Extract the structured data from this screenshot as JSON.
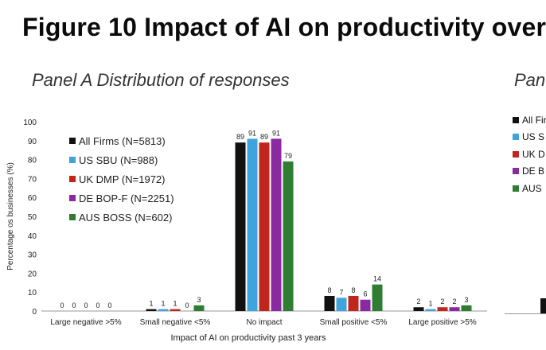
{
  "figure_title": "Figure 10 Impact of AI on productivity over",
  "panel_a_title": "Panel A Distribution of responses",
  "panel_b_title": "Pan",
  "chart_data": {
    "type": "bar",
    "title": "Panel A Distribution of responses",
    "xlabel": "Impact of AI on productivity past 3 years",
    "ylabel": "Percentage os businesses (%)",
    "ylim": [
      0,
      100
    ],
    "yticks": [
      0,
      10,
      20,
      30,
      40,
      50,
      60,
      70,
      80,
      90,
      100
    ],
    "categories": [
      "Large negative >5%",
      "Small negative <5%",
      "No impact",
      "Small positive <5%",
      "Large positive >5%"
    ],
    "legend_position": "top-left",
    "series": [
      {
        "name": "All Firms (N=5813)",
        "color": "#111111",
        "values": [
          0,
          1,
          89,
          8,
          2
        ]
      },
      {
        "name": "US SBU (N=988)",
        "color": "#3fa4dc",
        "values": [
          0,
          1,
          91,
          7,
          1
        ]
      },
      {
        "name": "UK DMP (N=1972)",
        "color": "#c0271c",
        "values": [
          0,
          1,
          89,
          8,
          2
        ]
      },
      {
        "name": "DE BOP-F (N=2251)",
        "color": "#8a2aa0",
        "values": [
          0,
          0,
          91,
          6,
          2
        ]
      },
      {
        "name": "AUS BOSS (N=602)",
        "color": "#2e7d32",
        "values": [
          0,
          3,
          79,
          14,
          3
        ]
      }
    ]
  },
  "panel_b_legend": [
    "All Firm",
    "US S",
    "UK D",
    "DE B",
    "AUS"
  ]
}
